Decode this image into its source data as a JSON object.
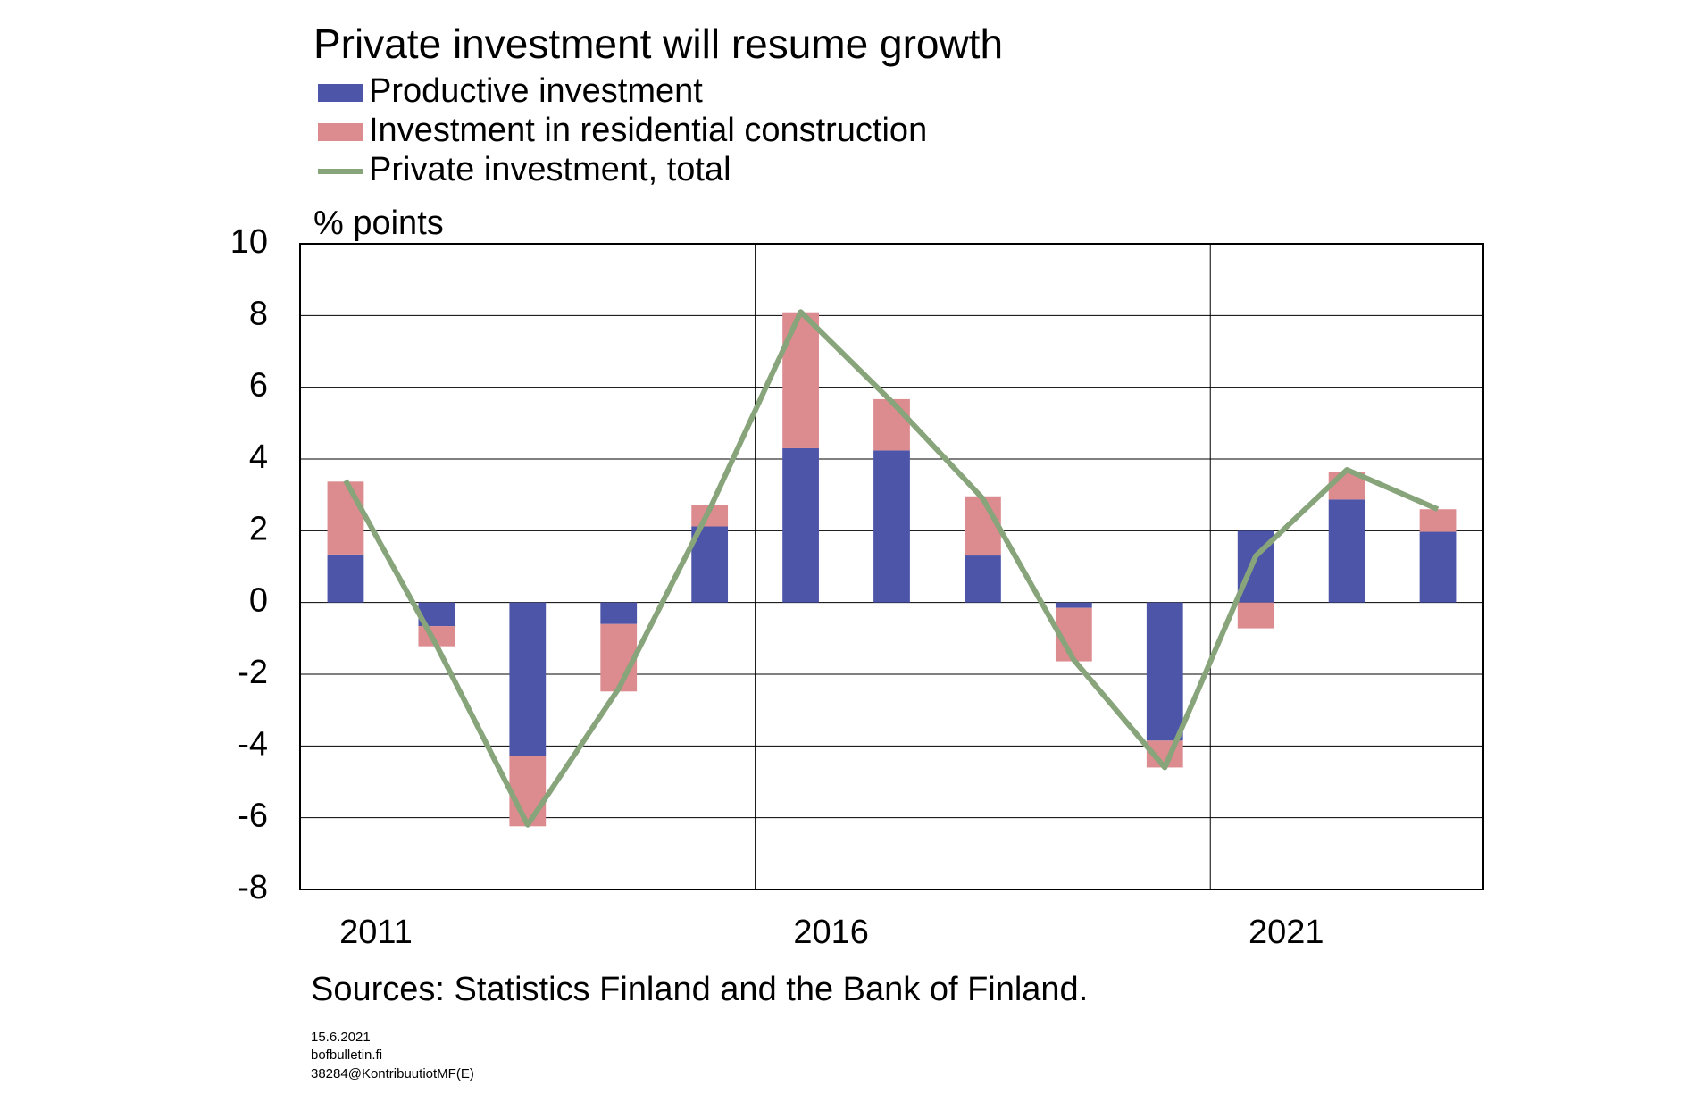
{
  "chart_data": {
    "type": "bar",
    "title": "Private investment will resume growth",
    "y_label": "% points",
    "source": "Sources: Statistics Finland and the Bank of Finland.",
    "notes": [
      "15.6.2021",
      "bofbulletin.fi",
      "38284@KontribuutiotMF(E)"
    ],
    "categories": [
      "2011",
      null,
      null,
      null,
      null,
      "2016",
      null,
      null,
      null,
      null,
      "2021",
      null,
      null
    ],
    "stacked": true,
    "series": [
      {
        "name": "Productive investment",
        "color": "#4d55a8",
        "values": [
          1.34,
          -0.66,
          -4.27,
          -0.6,
          2.12,
          4.3,
          4.24,
          1.31,
          -0.15,
          -3.85,
          2.0,
          2.87,
          1.97
        ]
      },
      {
        "name": "Investment in residential construction",
        "color": "#dc8b8f",
        "values": [
          2.03,
          -0.56,
          -1.97,
          -1.88,
          0.6,
          3.79,
          1.43,
          1.65,
          -1.49,
          -0.75,
          -0.72,
          0.77,
          0.63
        ]
      },
      {
        "name": "Private investment, total",
        "type": "line",
        "color": "#87a47a",
        "values": [
          3.4,
          -1.2,
          -6.2,
          -2.4,
          2.6,
          8.1,
          5.6,
          2.9,
          -1.6,
          -4.6,
          1.3,
          3.7,
          2.6
        ]
      }
    ],
    "ylim": [
      -8,
      10
    ],
    "yticks": [
      -8,
      -6,
      -4,
      -2,
      0,
      2,
      4,
      6,
      8,
      10
    ],
    "grid": true
  }
}
